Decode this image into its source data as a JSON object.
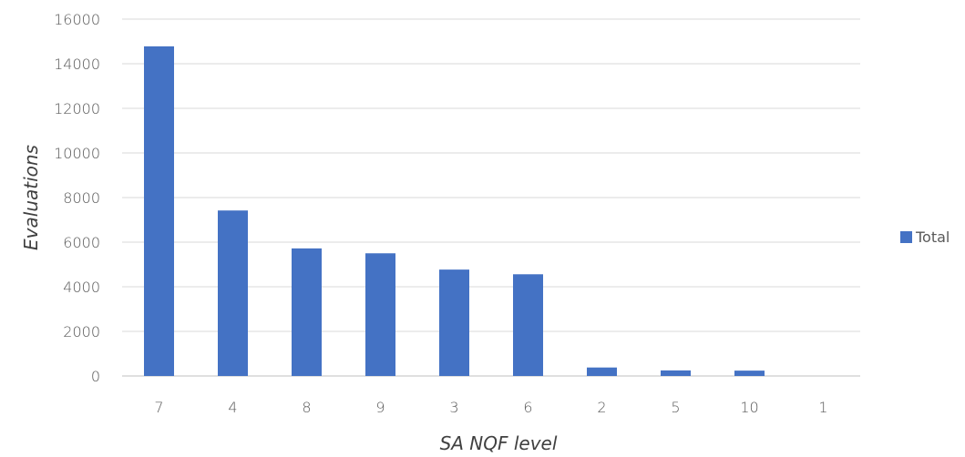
{
  "chart_data": {
    "type": "bar",
    "categories": [
      "7",
      "4",
      "8",
      "9",
      "3",
      "6",
      "2",
      "5",
      "10",
      "1"
    ],
    "series": [
      {
        "name": "Total",
        "color": "#4472C4",
        "values": [
          14780,
          7420,
          5720,
          5500,
          4770,
          4560,
          380,
          250,
          240,
          0
        ]
      }
    ],
    "xlabel": "SA NQF level",
    "ylabel": "Evaluations",
    "ylim": [
      0,
      16000
    ],
    "yticks": [
      0,
      2000,
      4000,
      6000,
      8000,
      10000,
      12000,
      14000,
      16000
    ],
    "grid": true,
    "legend_position": "right"
  }
}
